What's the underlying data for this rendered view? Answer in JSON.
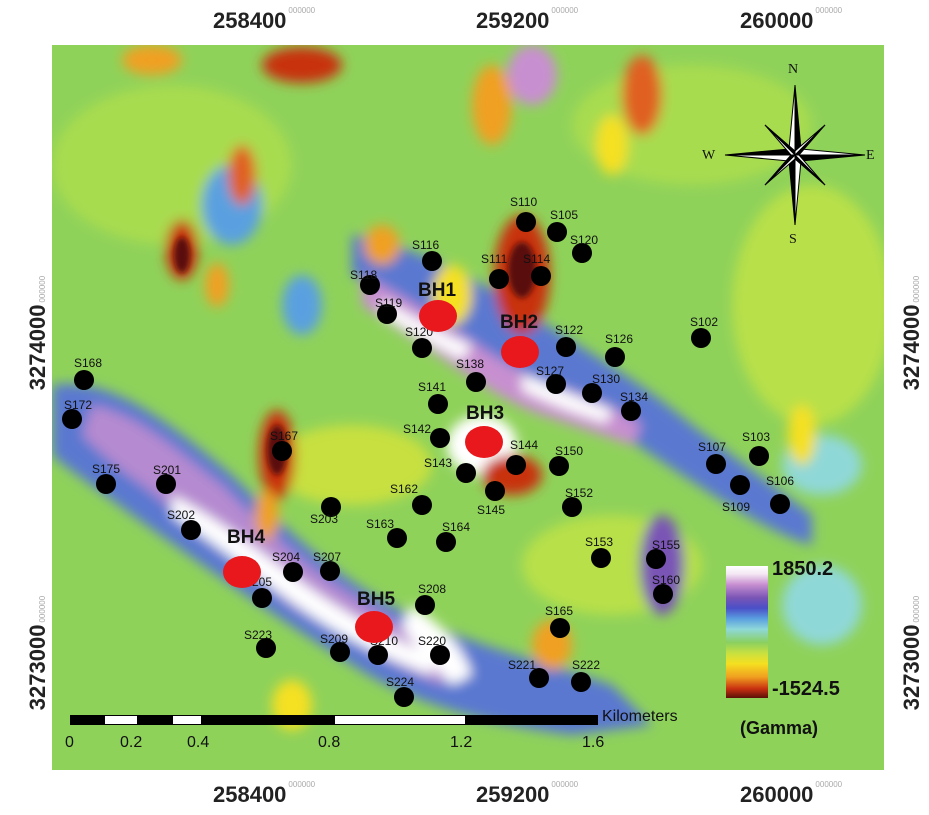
{
  "map": {
    "x_ticks": [
      {
        "value": "258400",
        "suffix": "000000"
      },
      {
        "value": "259200",
        "suffix": "000000"
      },
      {
        "value": "260000",
        "suffix": "000000"
      }
    ],
    "y_ticks": [
      {
        "value": "3274000",
        "suffix": "000000"
      },
      {
        "value": "3273000",
        "suffix": "000000"
      }
    ],
    "compass": {
      "n": "N",
      "s": "S",
      "e": "E",
      "w": "W"
    },
    "legend": {
      "max": "1850.2",
      "min": "-1524.5",
      "unit": "(Gamma)"
    },
    "scale": {
      "title": "Kilometers",
      "labels": [
        "0",
        "0.2",
        "0.4",
        "0.8",
        "1.2",
        "1.6"
      ]
    },
    "boreholes": [
      "BH1",
      "BH2",
      "BH3",
      "BH4",
      "BH5"
    ],
    "stations": [
      "S110",
      "S105",
      "S120",
      "S116",
      "S111",
      "S114",
      "S118",
      "S119",
      "S120",
      "S122",
      "S126",
      "S102",
      "S138",
      "S127",
      "S130",
      "S134",
      "S141",
      "S142",
      "S144",
      "S150",
      "S143",
      "S145",
      "S152",
      "S107",
      "S103",
      "S106",
      "S109",
      "S168",
      "S172",
      "S167",
      "S175",
      "S201",
      "S202",
      "S162",
      "S163",
      "S164",
      "S203",
      "S204",
      "S207",
      "S153",
      "S155",
      "S160",
      "S205",
      "S208",
      "S165",
      "S223",
      "S209",
      "S210",
      "S220",
      "S221",
      "S222",
      "S224"
    ],
    "colors": {
      "background": "#8fd25a",
      "dot": "#000000",
      "borehole": "#e8181c"
    }
  }
}
